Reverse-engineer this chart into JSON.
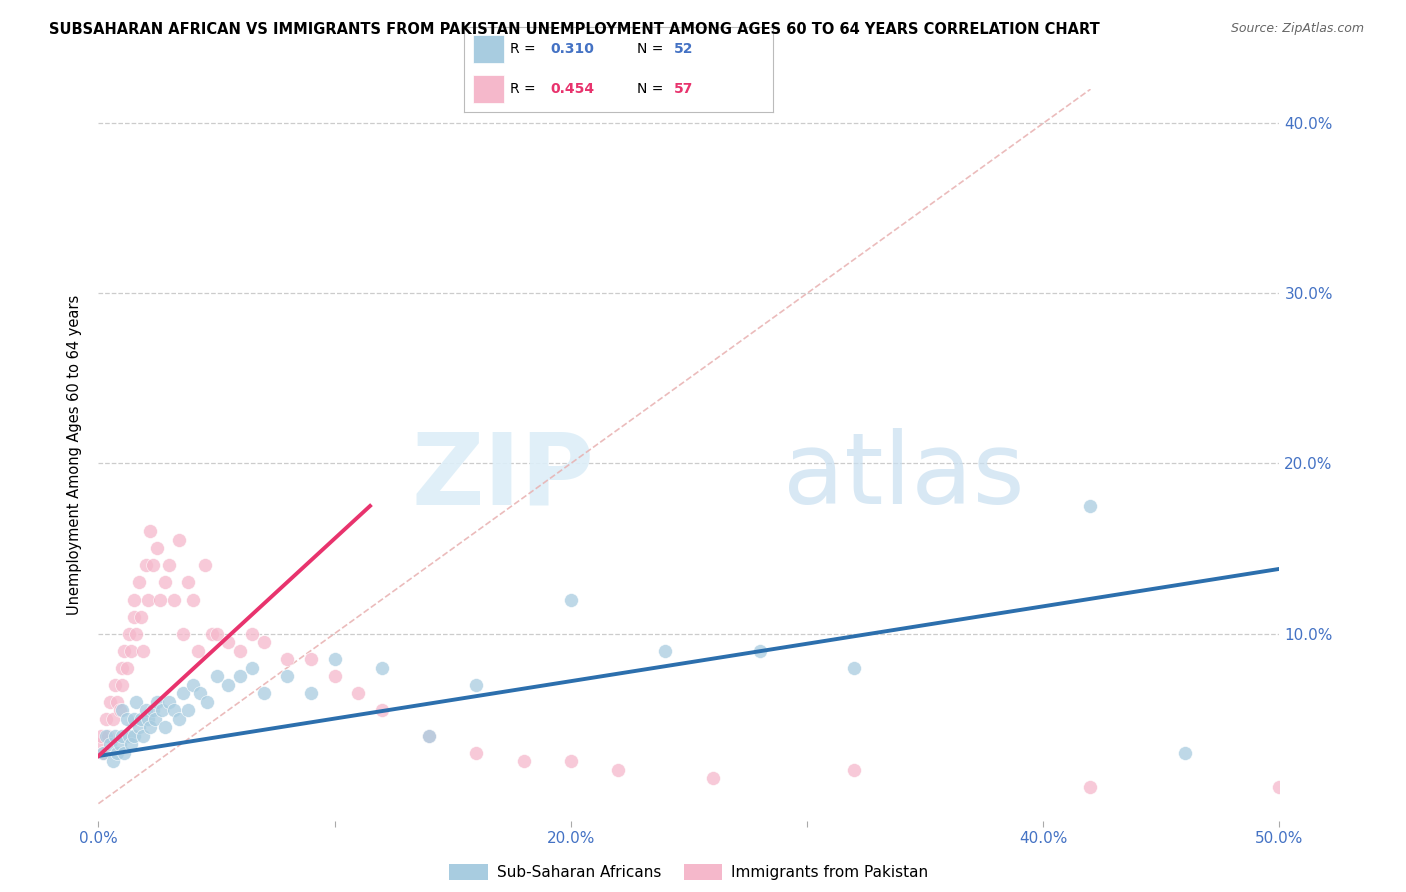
{
  "title": "SUBSAHARAN AFRICAN VS IMMIGRANTS FROM PAKISTAN UNEMPLOYMENT AMONG AGES 60 TO 64 YEARS CORRELATION CHART",
  "source": "Source: ZipAtlas.com",
  "ylabel": "Unemployment Among Ages 60 to 64 years",
  "xmin": 0.0,
  "xmax": 0.5,
  "ymin": -0.01,
  "ymax": 0.42,
  "xticks": [
    0.0,
    0.1,
    0.2,
    0.3,
    0.4,
    0.5
  ],
  "yticks": [
    0.0,
    0.1,
    0.2,
    0.3,
    0.4
  ],
  "ytick_labels": [
    "",
    "10.0%",
    "20.0%",
    "30.0%",
    "40.0%"
  ],
  "xtick_labels": [
    "0.0%",
    "",
    "20.0%",
    "",
    "40.0%",
    "50.0%"
  ],
  "blue_color": "#a8cce0",
  "pink_color": "#f5b8cb",
  "blue_line_color": "#2c6fad",
  "pink_line_color": "#e8336d",
  "diagonal_color": "#d0b0b0",
  "R_blue": 0.31,
  "N_blue": 52,
  "R_pink": 0.454,
  "N_pink": 57,
  "legend_label_blue": "Sub-Saharan Africans",
  "legend_label_pink": "Immigrants from Pakistan",
  "watermark_zip": "ZIP",
  "watermark_atlas": "atlas",
  "blue_scatter_x": [
    0.002,
    0.003,
    0.005,
    0.006,
    0.007,
    0.008,
    0.009,
    0.01,
    0.01,
    0.011,
    0.012,
    0.013,
    0.014,
    0.015,
    0.015,
    0.016,
    0.017,
    0.018,
    0.019,
    0.02,
    0.021,
    0.022,
    0.023,
    0.024,
    0.025,
    0.027,
    0.028,
    0.03,
    0.032,
    0.034,
    0.036,
    0.038,
    0.04,
    0.043,
    0.046,
    0.05,
    0.055,
    0.06,
    0.065,
    0.07,
    0.08,
    0.09,
    0.1,
    0.12,
    0.14,
    0.16,
    0.2,
    0.24,
    0.28,
    0.32,
    0.42,
    0.46
  ],
  "blue_scatter_y": [
    0.03,
    0.04,
    0.035,
    0.025,
    0.04,
    0.03,
    0.035,
    0.04,
    0.055,
    0.03,
    0.05,
    0.04,
    0.035,
    0.05,
    0.04,
    0.06,
    0.045,
    0.05,
    0.04,
    0.055,
    0.05,
    0.045,
    0.055,
    0.05,
    0.06,
    0.055,
    0.045,
    0.06,
    0.055,
    0.05,
    0.065,
    0.055,
    0.07,
    0.065,
    0.06,
    0.075,
    0.07,
    0.075,
    0.08,
    0.065,
    0.075,
    0.065,
    0.085,
    0.08,
    0.04,
    0.07,
    0.12,
    0.09,
    0.09,
    0.08,
    0.175,
    0.03
  ],
  "pink_scatter_x": [
    0.0,
    0.001,
    0.002,
    0.003,
    0.004,
    0.005,
    0.006,
    0.007,
    0.008,
    0.009,
    0.01,
    0.01,
    0.011,
    0.012,
    0.013,
    0.014,
    0.015,
    0.015,
    0.016,
    0.017,
    0.018,
    0.019,
    0.02,
    0.021,
    0.022,
    0.023,
    0.025,
    0.026,
    0.028,
    0.03,
    0.032,
    0.034,
    0.036,
    0.038,
    0.04,
    0.042,
    0.045,
    0.048,
    0.05,
    0.055,
    0.06,
    0.065,
    0.07,
    0.08,
    0.09,
    0.1,
    0.11,
    0.12,
    0.14,
    0.16,
    0.18,
    0.2,
    0.22,
    0.26,
    0.32,
    0.42,
    0.5
  ],
  "pink_scatter_y": [
    0.035,
    0.04,
    0.03,
    0.05,
    0.04,
    0.06,
    0.05,
    0.07,
    0.06,
    0.055,
    0.08,
    0.07,
    0.09,
    0.08,
    0.1,
    0.09,
    0.12,
    0.11,
    0.1,
    0.13,
    0.11,
    0.09,
    0.14,
    0.12,
    0.16,
    0.14,
    0.15,
    0.12,
    0.13,
    0.14,
    0.12,
    0.155,
    0.1,
    0.13,
    0.12,
    0.09,
    0.14,
    0.1,
    0.1,
    0.095,
    0.09,
    0.1,
    0.095,
    0.085,
    0.085,
    0.075,
    0.065,
    0.055,
    0.04,
    0.03,
    0.025,
    0.025,
    0.02,
    0.015,
    0.02,
    0.01,
    0.01
  ],
  "blue_trend_x": [
    0.0,
    0.5
  ],
  "blue_trend_y": [
    0.028,
    0.138
  ],
  "pink_trend_x": [
    0.0,
    0.115
  ],
  "pink_trend_y": [
    0.028,
    0.175
  ]
}
